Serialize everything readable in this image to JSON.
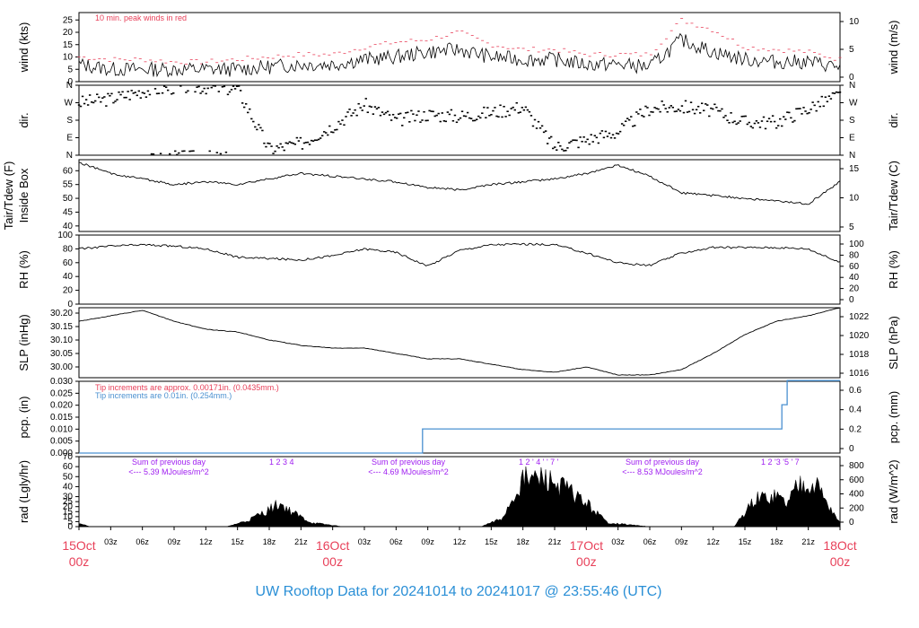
{
  "title": "UW Rooftop Data for 20241014  to  20241017 @ 23:55:46  (UTC)",
  "colors": {
    "title": "#2a8fd6",
    "date_label": "#e8415a",
    "peak": "#e8415a",
    "precip": "#4a90d0",
    "radiation_note": "#a020f0"
  },
  "x_axis": {
    "hour_ticks": [
      "03z",
      "06z",
      "09z",
      "12z",
      "15z",
      "18z",
      "21z",
      "03z",
      "06z",
      "09z",
      "12z",
      "15z",
      "18z",
      "21z",
      "03z",
      "06z",
      "09z",
      "12z",
      "15z",
      "18z",
      "21z"
    ],
    "day_labels": [
      {
        "date": "15Oct",
        "hour": "00z"
      },
      {
        "date": "16Oct",
        "hour": "00z"
      },
      {
        "date": "17Oct",
        "hour": "00z"
      },
      {
        "date": "18Oct",
        "hour": "00z"
      }
    ]
  },
  "chart_data": [
    {
      "id": "wind",
      "type": "line",
      "ylabel_left": "wind (kts)",
      "ylabel_right": "wind (m/s)",
      "left_ticks": [
        "0",
        "5",
        "10",
        "15",
        "20",
        "25"
      ],
      "right_ticks": [
        "0",
        "5",
        "10"
      ],
      "ylim": [
        0,
        28
      ],
      "annotation": "10 min. peak winds in red",
      "series": [
        {
          "name": "10 min. peak winds in red",
          "x": [
            0,
            3,
            6,
            9,
            12,
            15,
            18,
            21,
            24,
            27,
            30,
            33,
            36,
            39,
            42,
            45,
            48,
            51,
            54,
            57,
            60,
            63,
            66,
            69,
            72
          ],
          "values": [
            9,
            8,
            8,
            7,
            7,
            8,
            9,
            10,
            10,
            13,
            15,
            16,
            19,
            14,
            12,
            12,
            10,
            10,
            10,
            24,
            20,
            13,
            12,
            11,
            8
          ]
        },
        {
          "x": [
            0,
            3,
            6,
            9,
            12,
            15,
            18,
            21,
            24,
            27,
            30,
            33,
            36,
            39,
            42,
            45,
            48,
            51,
            54,
            57,
            60,
            63,
            66,
            69,
            72
          ],
          "values": [
            7,
            5,
            5,
            5,
            5,
            5,
            6,
            7,
            7,
            9,
            10,
            12,
            13,
            10,
            9,
            9,
            7,
            7,
            6,
            17,
            12,
            9,
            8,
            8,
            6
          ]
        }
      ]
    },
    {
      "id": "dir",
      "type": "scatter",
      "ylabel_left": "dir.",
      "ylabel_right": "dir.",
      "left_ticks": [
        "N",
        "E",
        "S",
        "W",
        "N"
      ],
      "right_ticks": [
        "N",
        "E",
        "S",
        "W",
        "N"
      ],
      "ylim": [
        0,
        360
      ],
      "x": [
        0,
        3,
        6,
        9,
        12,
        15,
        18,
        21,
        24,
        27,
        30,
        33,
        36,
        39,
        42,
        45,
        48,
        51,
        54,
        57,
        60,
        63,
        66,
        69,
        72
      ],
      "values": [
        270,
        290,
        330,
        350,
        350,
        340,
        30,
        60,
        150,
        260,
        180,
        210,
        200,
        220,
        250,
        40,
        80,
        120,
        240,
        250,
        230,
        170,
        170,
        240,
        310
      ]
    },
    {
      "id": "temp",
      "type": "line",
      "ylabel_left": [
        "Tair/Tdew (F)",
        "Inside Box"
      ],
      "ylabel_right": "Tair/Tdew (C)",
      "left_ticks": [
        "40",
        "45",
        "50",
        "55",
        "60"
      ],
      "right_ticks": [
        "5",
        "10",
        "15"
      ],
      "ylim": [
        38,
        64
      ],
      "x": [
        0,
        3,
        6,
        9,
        12,
        15,
        18,
        21,
        24,
        27,
        30,
        33,
        36,
        39,
        42,
        45,
        48,
        51,
        54,
        57,
        60,
        63,
        66,
        69,
        72
      ],
      "values": [
        63,
        59,
        57,
        55,
        56,
        55,
        57,
        59,
        58,
        57,
        56,
        54,
        53,
        55,
        56,
        57,
        59,
        62,
        58,
        52,
        51,
        50,
        49,
        48,
        56
      ]
    },
    {
      "id": "rh",
      "type": "line",
      "ylabel_left": "RH (%)",
      "ylabel_right": "RH (%)",
      "left_ticks": [
        "0",
        "20",
        "40",
        "60",
        "80",
        "100"
      ],
      "right_ticks": [
        "0",
        "20",
        "40",
        "60",
        "80",
        "100"
      ],
      "ylim": [
        0,
        100
      ],
      "x": [
        0,
        3,
        6,
        9,
        12,
        15,
        18,
        21,
        24,
        27,
        30,
        33,
        36,
        39,
        42,
        45,
        48,
        51,
        54,
        57,
        60,
        63,
        66,
        69,
        72
      ],
      "values": [
        80,
        84,
        86,
        84,
        80,
        68,
        66,
        64,
        70,
        80,
        75,
        55,
        78,
        86,
        87,
        86,
        74,
        60,
        56,
        74,
        82,
        82,
        82,
        80,
        60
      ]
    },
    {
      "id": "slp",
      "type": "line",
      "ylabel_left": "SLP (inHg)",
      "ylabel_right": "SLP (hPa)",
      "left_ticks": [
        "30.00",
        "30.05",
        "30.10",
        "30.15",
        "30.20"
      ],
      "right_ticks": [
        "1016",
        "1018",
        "1020",
        "1022"
      ],
      "ylim": [
        29.96,
        30.22
      ],
      "x": [
        0,
        3,
        6,
        9,
        12,
        15,
        18,
        21,
        24,
        27,
        30,
        33,
        36,
        39,
        42,
        45,
        48,
        51,
        54,
        57,
        60,
        63,
        66,
        69,
        72
      ],
      "values": [
        30.17,
        30.19,
        30.21,
        30.17,
        30.14,
        30.13,
        30.1,
        30.08,
        30.07,
        30.07,
        30.05,
        30.03,
        30.03,
        30.01,
        29.99,
        29.98,
        30.0,
        29.97,
        29.97,
        29.99,
        30.05,
        30.12,
        30.17,
        30.19,
        30.22
      ]
    },
    {
      "id": "pcp",
      "type": "line",
      "ylabel_left": "pcp. (in)",
      "ylabel_right": "pcp. (mm)",
      "left_ticks": [
        "0.000",
        "0.005",
        "0.010",
        "0.015",
        "0.020",
        "0.025",
        "0.030"
      ],
      "right_ticks": [
        "0",
        "0.2",
        "0.4",
        "0.6"
      ],
      "ylim": [
        0,
        0.03
      ],
      "notes": [
        {
          "text": "Tip increments are approx. 0.00171in. (0.0435mm.)",
          "color": "#e8415a"
        },
        {
          "text": "Tip increments are 0.01in. (0.254mm.)",
          "color": "#4a90d0"
        }
      ],
      "x": [
        0,
        32.5,
        32.5,
        66.5,
        66.5,
        67,
        67,
        72
      ],
      "values": [
        0,
        0,
        0.0101,
        0.0101,
        0.0202,
        0.0202,
        0.0303,
        0.0303
      ]
    },
    {
      "id": "rad",
      "type": "area",
      "ylabel_left": "rad (Lgly/hr)",
      "ylabel_right": "rad (W/m^2)",
      "left_ticks": [
        "0",
        "5",
        "10",
        "15",
        "20",
        "25",
        "30",
        "40",
        "50",
        "60",
        "70"
      ],
      "right_ticks": [
        "0",
        "200",
        "400",
        "600",
        "800"
      ],
      "ylim": [
        0,
        70
      ],
      "x": [
        0,
        1,
        14,
        16,
        18,
        19,
        20,
        22,
        25,
        38,
        40,
        42,
        44,
        46,
        48,
        50,
        54,
        62,
        64,
        66,
        67,
        68,
        69,
        70,
        71,
        72
      ],
      "values": [
        5,
        0,
        0,
        8,
        22,
        30,
        20,
        5,
        0,
        0,
        10,
        60,
        62,
        50,
        30,
        5,
        0,
        0,
        35,
        40,
        30,
        55,
        60,
        50,
        25,
        5
      ],
      "daily_sums": [
        {
          "line1": "Sum of previous day",
          "line2": "<--- 5.39 MJoules/m^2",
          "marks": "1  2  3  4"
        },
        {
          "line1": "Sum of previous day",
          "line2": "<--- 4.69 MJoules/m^2",
          "marks": "1  2 '  4 ' ' 7   '"
        },
        {
          "line1": "Sum of previous day",
          "line2": "<--- 8.53 MJoules/m^2",
          "marks": "1    2  '3 '5 ' 7"
        }
      ]
    }
  ]
}
